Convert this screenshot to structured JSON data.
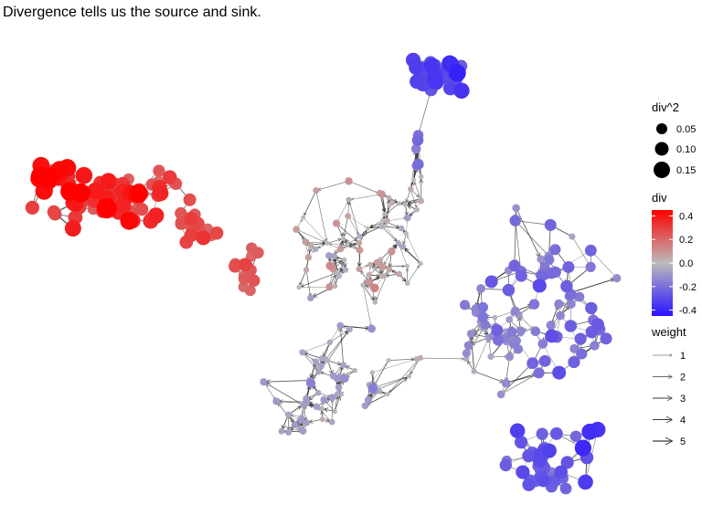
{
  "title": "Divergence tells us the source and sink.",
  "legend": {
    "size": {
      "title": "div^2",
      "entries": [
        {
          "label": "0.05",
          "value": 0.05
        },
        {
          "label": "0.10",
          "value": 0.1
        },
        {
          "label": "0.15",
          "value": 0.15
        }
      ]
    },
    "color": {
      "title": "div",
      "ticks": [
        {
          "label": "0.4",
          "value": 0.4
        },
        {
          "label": "0.2",
          "value": 0.2
        },
        {
          "label": "0.0",
          "value": 0.0
        },
        {
          "label": "-0.2",
          "value": -0.2
        },
        {
          "label": "-0.4",
          "value": -0.4
        }
      ],
      "range": [
        -0.45,
        0.45
      ],
      "high_color": "#ff0000",
      "mid_color": "#bbbbbb",
      "low_color": "#2a12ff"
    },
    "weight": {
      "title": "weight",
      "entries": [
        {
          "label": "1",
          "value": 1
        },
        {
          "label": "2",
          "value": 2
        },
        {
          "label": "3",
          "value": 3
        },
        {
          "label": "4",
          "value": 4
        },
        {
          "label": "5",
          "value": 5
        }
      ]
    }
  },
  "edge_color": "#3a3a3a"
}
